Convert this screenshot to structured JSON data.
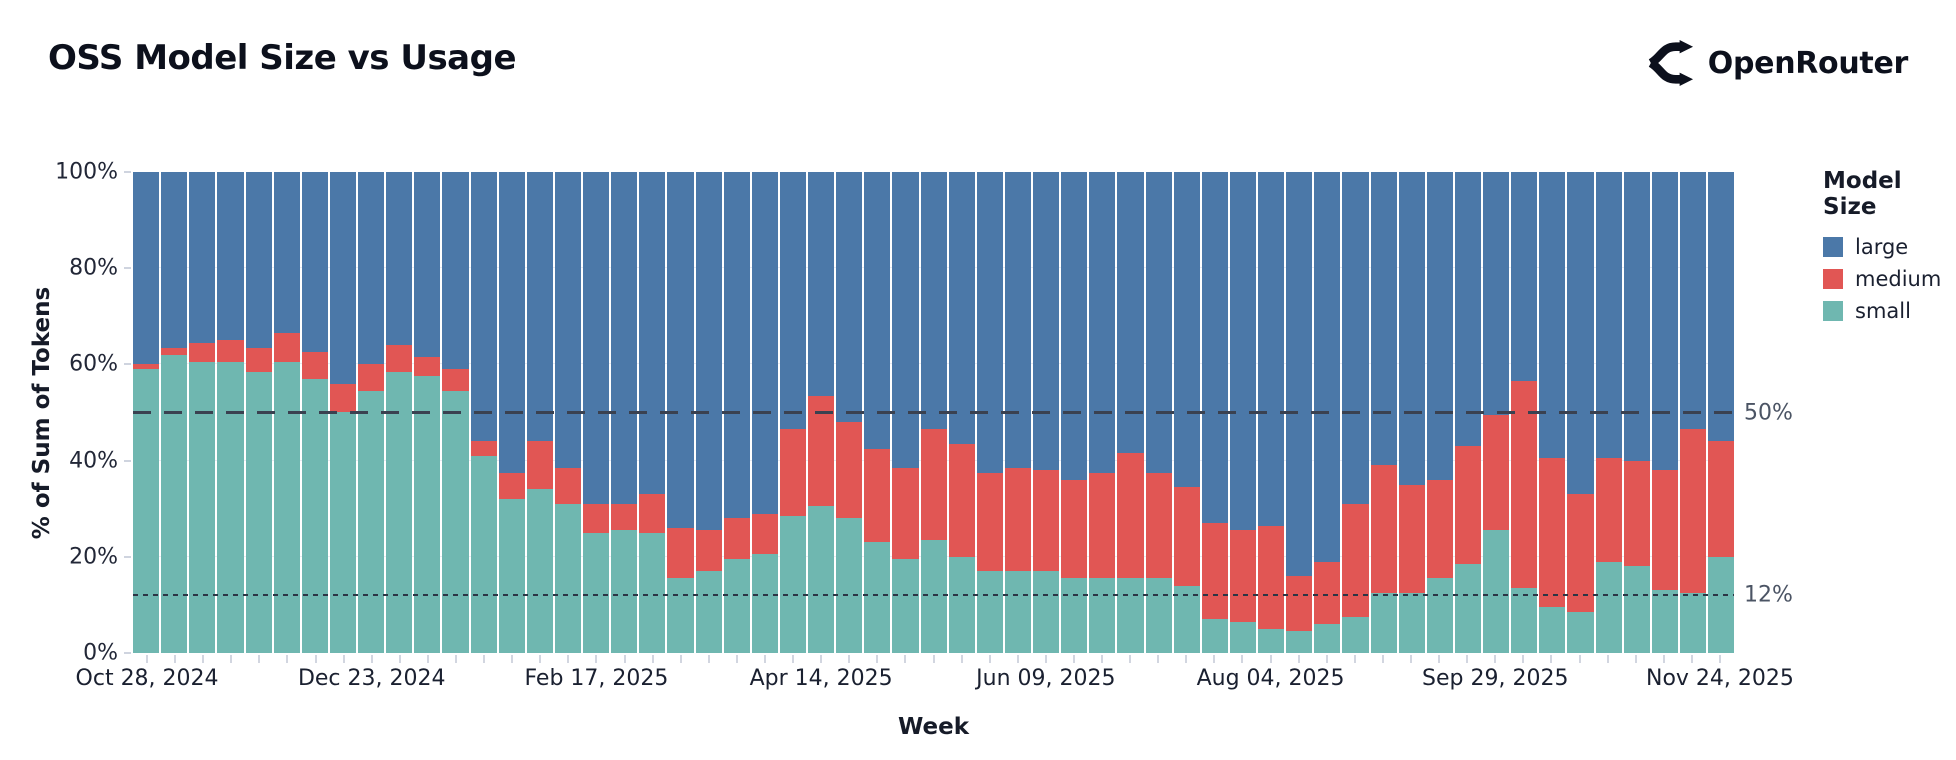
{
  "header": {
    "title": "OSS Model Size vs Usage",
    "brand": "OpenRouter"
  },
  "legend": {
    "title": "Model Size",
    "items": [
      {
        "label": "large",
        "color": "#4b78a8"
      },
      {
        "label": "medium",
        "color": "#e15654"
      },
      {
        "label": "small",
        "color": "#6fb7b0"
      }
    ]
  },
  "chart_data": {
    "type": "bar",
    "stacked": true,
    "title": "OSS Model Size vs Usage",
    "xlabel": "Week",
    "ylabel": "% of Sum of Tokens",
    "ylim": [
      0,
      100
    ],
    "grid": true,
    "legend_position": "right",
    "y_ticks": [
      {
        "value": 0,
        "label": "0%"
      },
      {
        "value": 20,
        "label": "20%"
      },
      {
        "value": 40,
        "label": "40%"
      },
      {
        "value": 60,
        "label": "60%"
      },
      {
        "value": 80,
        "label": "80%"
      },
      {
        "value": 100,
        "label": "100%"
      }
    ],
    "x_ticks": [
      {
        "index": 0,
        "label": "Oct 28, 2024"
      },
      {
        "index": 8,
        "label": "Dec 23, 2024"
      },
      {
        "index": 16,
        "label": "Feb 17, 2025"
      },
      {
        "index": 24,
        "label": "Apr 14, 2025"
      },
      {
        "index": 32,
        "label": "Jun 09, 2025"
      },
      {
        "index": 40,
        "label": "Aug 04, 2025"
      },
      {
        "index": 48,
        "label": "Sep 29, 2025"
      },
      {
        "index": 56,
        "label": "Nov 24, 2025"
      }
    ],
    "annotations": [
      {
        "value": 50,
        "label": "50%",
        "style": "dashed"
      },
      {
        "value": 12,
        "label": "12%",
        "style": "dotted"
      }
    ],
    "categories": [
      "Oct 28, 2024",
      "Nov 04, 2024",
      "Nov 11, 2024",
      "Nov 18, 2024",
      "Nov 25, 2024",
      "Dec 02, 2024",
      "Dec 09, 2024",
      "Dec 16, 2024",
      "Dec 23, 2024",
      "Dec 30, 2024",
      "Jan 06, 2025",
      "Jan 13, 2025",
      "Jan 20, 2025",
      "Jan 27, 2025",
      "Feb 03, 2025",
      "Feb 10, 2025",
      "Feb 17, 2025",
      "Feb 24, 2025",
      "Mar 03, 2025",
      "Mar 10, 2025",
      "Mar 17, 2025",
      "Mar 24, 2025",
      "Mar 31, 2025",
      "Apr 07, 2025",
      "Apr 14, 2025",
      "Apr 21, 2025",
      "Apr 28, 2025",
      "May 05, 2025",
      "May 12, 2025",
      "May 19, 2025",
      "May 26, 2025",
      "Jun 02, 2025",
      "Jun 09, 2025",
      "Jun 16, 2025",
      "Jun 23, 2025",
      "Jun 30, 2025",
      "Jul 07, 2025",
      "Jul 14, 2025",
      "Jul 21, 2025",
      "Jul 28, 2025",
      "Aug 04, 2025",
      "Aug 11, 2025",
      "Aug 18, 2025",
      "Aug 25, 2025",
      "Sep 01, 2025",
      "Sep 08, 2025",
      "Sep 15, 2025",
      "Sep 22, 2025",
      "Sep 29, 2025",
      "Oct 06, 2025",
      "Oct 13, 2025",
      "Oct 20, 2025",
      "Oct 27, 2025",
      "Nov 03, 2025",
      "Nov 10, 2025",
      "Nov 17, 2025",
      "Nov 24, 2025"
    ],
    "series": [
      {
        "name": "small",
        "color": "#6fb7b0",
        "values": [
          59,
          62,
          60.5,
          60.5,
          58.5,
          60.5,
          57,
          50,
          54.5,
          58.5,
          57.5,
          54.5,
          41,
          32,
          34,
          31,
          25,
          25.5,
          25,
          15.5,
          17,
          19.5,
          20.5,
          28.5,
          30.5,
          28,
          23,
          19.5,
          23.5,
          20,
          17,
          17,
          17,
          15.5,
          15.5,
          15.5,
          15.5,
          14,
          7,
          6.5,
          5,
          4.5,
          6,
          7.5,
          12.5,
          12.5,
          15.5,
          18.5,
          25.5,
          13.5,
          9.5,
          8.5,
          19,
          18,
          13,
          12.5,
          20
        ]
      },
      {
        "name": "medium",
        "color": "#e15654",
        "values": [
          1,
          1.5,
          4,
          4.5,
          5,
          6,
          5.5,
          6,
          5.5,
          5.5,
          4,
          4.5,
          3,
          5.5,
          10,
          7.5,
          6,
          5.5,
          8,
          10.5,
          8.5,
          8.5,
          8.5,
          18,
          23,
          20,
          19.5,
          19,
          23,
          23.5,
          20.5,
          21.5,
          21,
          20.5,
          22,
          26,
          22,
          20.5,
          20,
          19,
          21.5,
          11.5,
          13,
          23.5,
          26.5,
          22.5,
          20.5,
          24.5,
          24,
          43,
          31,
          24.5,
          21.5,
          22,
          25,
          34,
          24
        ]
      },
      {
        "name": "large",
        "color": "#4b78a8",
        "values": [
          40,
          36.5,
          35.5,
          35,
          36.5,
          33.5,
          37.5,
          44,
          40,
          36,
          38.5,
          41,
          56,
          62.5,
          56,
          61.5,
          69,
          69,
          67,
          74,
          74.5,
          72,
          71,
          53.5,
          46.5,
          52,
          57.5,
          61.5,
          53.5,
          56.5,
          62.5,
          61.5,
          62,
          64,
          62.5,
          58.5,
          62.5,
          65.5,
          73,
          74.5,
          73.5,
          84,
          81,
          69,
          61,
          65,
          64,
          57,
          50.5,
          43.5,
          59.5,
          67,
          59.5,
          60,
          62,
          53.5,
          56
        ]
      }
    ]
  }
}
